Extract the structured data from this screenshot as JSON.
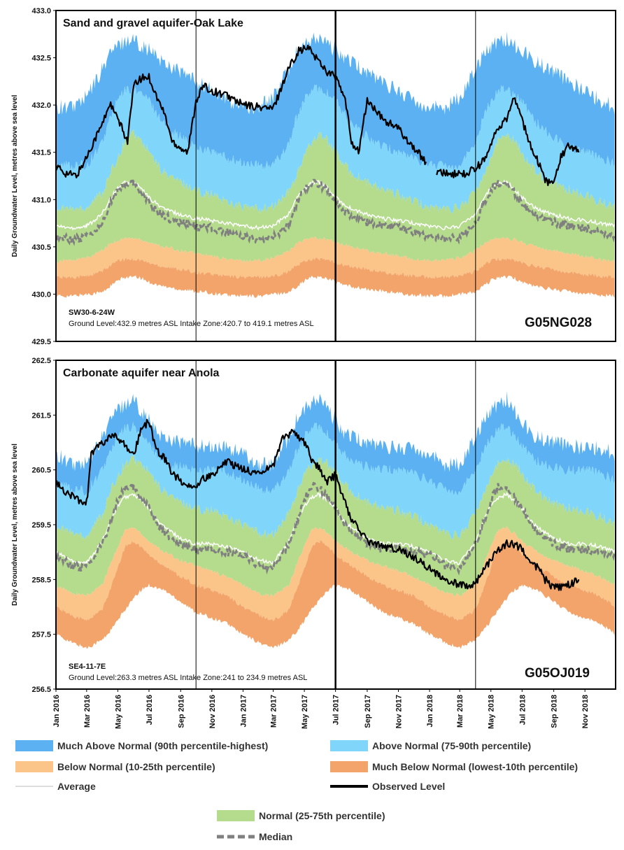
{
  "chart_data": [
    {
      "type": "area",
      "title": "Sand and gravel aquifer-Oak Lake",
      "location": "SW30-6-24W",
      "info": "Ground Level:432.9 metres ASL Intake Zone:420.7 to 419.1 metres ASL",
      "station": "G05NG028",
      "ylabel": "Daily Groundwater Level, metres above sea level",
      "ylim": [
        429.5,
        433.0
      ],
      "yticks": [
        "433.0",
        "432.5",
        "432.0",
        "431.5",
        "431.0",
        "430.5",
        "430.0",
        "429.5"
      ],
      "xlim": [
        "2016-01-01",
        "2018-12-31"
      ],
      "vlines": [
        {
          "date": "2016-10-01",
          "weight": "thin"
        },
        {
          "date": "2017-07-01",
          "weight": "thick"
        },
        {
          "date": "2018-04-01",
          "weight": "thin"
        }
      ],
      "percentile_bands": {
        "x": [
          "01-01",
          "02-01",
          "03-01",
          "04-01",
          "04-15",
          "05-01",
          "05-15",
          "06-01",
          "06-15",
          "07-01",
          "07-15",
          "08-01",
          "09-01",
          "10-01",
          "11-01",
          "12-01",
          "12-31"
        ],
        "min": [
          429.98,
          429.98,
          430.0,
          430.02,
          430.08,
          430.14,
          430.18,
          430.18,
          430.17,
          430.13,
          430.1,
          430.08,
          430.05,
          430.03,
          430.01,
          429.99,
          429.98
        ],
        "p10": [
          430.18,
          430.18,
          430.19,
          430.24,
          430.3,
          430.35,
          430.37,
          430.37,
          430.36,
          430.33,
          430.31,
          430.29,
          430.26,
          430.23,
          430.21,
          430.19,
          430.18
        ],
        "p25": [
          430.35,
          430.36,
          430.38,
          430.46,
          430.53,
          430.57,
          430.59,
          430.59,
          430.58,
          430.55,
          430.52,
          430.5,
          430.46,
          430.43,
          430.4,
          430.37,
          430.35
        ],
        "p75": [
          430.92,
          430.9,
          430.92,
          431.08,
          431.25,
          431.45,
          431.62,
          431.7,
          431.62,
          431.5,
          431.38,
          431.28,
          431.18,
          431.1,
          431.05,
          430.98,
          430.92
        ],
        "p90": [
          431.38,
          431.36,
          431.36,
          431.6,
          431.85,
          432.05,
          432.15,
          432.18,
          432.12,
          432.05,
          431.92,
          431.8,
          431.66,
          431.56,
          431.5,
          431.44,
          431.38
        ],
        "max": [
          431.98,
          431.98,
          432.08,
          432.38,
          432.55,
          432.62,
          432.68,
          432.7,
          432.64,
          432.58,
          432.52,
          432.45,
          432.35,
          432.25,
          432.15,
          432.05,
          431.98
        ],
        "average": [
          430.72,
          430.7,
          430.72,
          430.85,
          431.0,
          431.12,
          431.18,
          431.18,
          431.12,
          431.02,
          430.96,
          430.9,
          430.84,
          430.8,
          430.78,
          430.75,
          430.72
        ],
        "median": [
          430.61,
          430.58,
          430.6,
          430.74,
          430.95,
          431.1,
          431.17,
          431.16,
          431.08,
          430.96,
          430.88,
          430.82,
          430.76,
          430.72,
          430.7,
          430.66,
          430.61
        ]
      },
      "observed_segments": [
        {
          "x": [
            "2016-01-01",
            "2016-01-20",
            "2016-02-10",
            "2016-03-01",
            "2016-03-15",
            "2016-04-01",
            "2016-04-15",
            "2016-05-01",
            "2016-05-20",
            "2016-06-01",
            "2016-06-15",
            "2016-07-01",
            "2016-07-15",
            "2016-08-01",
            "2016-08-15",
            "2016-09-01",
            "2016-09-15",
            "2016-10-01",
            "2016-10-15",
            "2016-11-01",
            "2016-12-01",
            "2017-01-01",
            "2017-02-01",
            "2017-03-01",
            "2017-04-01",
            "2017-04-20",
            "2017-05-10",
            "2017-06-01",
            "2017-06-15",
            "2017-07-01",
            "2017-07-20",
            "2017-08-01",
            "2017-08-15",
            "2017-09-01",
            "2017-10-01",
            "2017-11-01",
            "2017-12-01",
            "2017-12-25"
          ],
          "y": [
            431.35,
            431.28,
            431.25,
            431.45,
            431.62,
            431.8,
            432.02,
            431.85,
            431.62,
            432.2,
            432.28,
            432.3,
            432.1,
            431.9,
            431.62,
            431.55,
            431.5,
            432.05,
            432.2,
            432.15,
            432.1,
            432.0,
            431.98,
            431.96,
            432.4,
            432.58,
            432.6,
            432.45,
            432.35,
            432.3,
            432.05,
            431.62,
            431.5,
            432.05,
            431.85,
            431.75,
            431.55,
            431.4
          ]
        },
        {
          "x": [
            "2018-01-15",
            "2018-02-15",
            "2018-03-15",
            "2018-04-01",
            "2018-04-20",
            "2018-05-10",
            "2018-06-01",
            "2018-06-15",
            "2018-07-01",
            "2018-07-15",
            "2018-08-01",
            "2018-08-15",
            "2018-09-01",
            "2018-09-15",
            "2018-10-01",
            "2018-10-20"
          ],
          "y": [
            431.3,
            431.27,
            431.27,
            431.33,
            431.42,
            431.7,
            431.85,
            432.08,
            431.85,
            431.6,
            431.4,
            431.2,
            431.15,
            431.45,
            431.58,
            431.5
          ]
        }
      ]
    },
    {
      "type": "area",
      "title": "Carbonate aquifer near Anola",
      "location": "SE4-11-7E",
      "info": "Ground Level:263.3 metres ASL Intake Zone:241 to 234.9 metres ASL",
      "station": "G05OJ019",
      "ylabel": "Daily Groundwater Level, metres above sea level",
      "ylim": [
        256.5,
        262.5
      ],
      "yticks": [
        "262.5",
        "261.5",
        "260.5",
        "259.5",
        "258.5",
        "257.5",
        "256.5"
      ],
      "xlim": [
        "2016-01-01",
        "2018-12-31"
      ],
      "vlines": [
        {
          "date": "2016-10-01",
          "weight": "thin"
        },
        {
          "date": "2017-07-01",
          "weight": "thick"
        },
        {
          "date": "2018-04-01",
          "weight": "thin"
        }
      ],
      "percentile_bands": {
        "x": [
          "01-01",
          "02-01",
          "03-01",
          "04-01",
          "04-15",
          "05-01",
          "05-15",
          "06-01",
          "06-15",
          "07-01",
          "07-15",
          "08-01",
          "09-01",
          "10-01",
          "11-01",
          "12-01",
          "12-31"
        ],
        "min": [
          257.5,
          257.35,
          257.25,
          257.4,
          257.55,
          257.75,
          257.95,
          258.15,
          258.3,
          258.4,
          258.35,
          258.3,
          258.1,
          257.9,
          257.8,
          257.7,
          257.5
        ],
        "p10": [
          258.0,
          257.85,
          257.75,
          257.95,
          258.3,
          258.7,
          259.1,
          259.2,
          259.1,
          258.95,
          258.85,
          258.75,
          258.55,
          258.4,
          258.3,
          258.2,
          258.0
        ],
        "p25": [
          258.4,
          258.25,
          258.2,
          258.4,
          258.75,
          259.1,
          259.4,
          259.45,
          259.35,
          259.2,
          259.1,
          259.0,
          258.85,
          258.75,
          258.65,
          258.55,
          258.4
        ],
        "p75": [
          259.5,
          259.35,
          259.3,
          259.7,
          260.05,
          260.4,
          260.6,
          260.7,
          260.6,
          260.45,
          260.25,
          260.1,
          259.9,
          259.8,
          259.75,
          259.65,
          259.5
        ],
        "p90": [
          260.3,
          260.15,
          260.1,
          260.5,
          260.8,
          261.1,
          261.25,
          261.3,
          261.15,
          260.95,
          260.8,
          260.65,
          260.55,
          260.5,
          260.5,
          260.45,
          260.3
        ],
        "max": [
          260.8,
          260.6,
          260.6,
          261.1,
          261.4,
          261.6,
          261.7,
          261.8,
          261.6,
          261.4,
          261.2,
          261.1,
          261.0,
          260.95,
          260.9,
          260.9,
          260.8
        ],
        "average": [
          259.0,
          258.85,
          258.8,
          259.2,
          259.55,
          259.85,
          260.0,
          260.05,
          259.95,
          259.8,
          259.6,
          259.45,
          259.25,
          259.15,
          259.15,
          259.1,
          259.0
        ],
        "median": [
          258.95,
          258.75,
          258.7,
          259.15,
          259.5,
          259.95,
          260.2,
          260.15,
          260.0,
          259.8,
          259.55,
          259.35,
          259.15,
          259.05,
          259.05,
          259.0,
          258.95
        ]
      },
      "observed_segments": [
        {
          "x": [
            "2016-01-01",
            "2016-01-20",
            "2016-02-15",
            "2016-03-01",
            "2016-03-10",
            "2016-04-01",
            "2016-04-20",
            "2016-05-01",
            "2016-05-20",
            "2016-06-01",
            "2016-06-15",
            "2016-07-01",
            "2016-07-15",
            "2016-08-01",
            "2016-08-15",
            "2016-09-01",
            "2016-09-15",
            "2016-10-01",
            "2016-10-15",
            "2016-11-01",
            "2016-12-01",
            "2017-01-01",
            "2017-02-01",
            "2017-03-01",
            "2017-03-20",
            "2017-04-10",
            "2017-05-01",
            "2017-05-15",
            "2017-06-01",
            "2017-06-15",
            "2017-07-01",
            "2017-07-15",
            "2017-08-01",
            "2017-09-01",
            "2017-10-01",
            "2017-11-01",
            "2017-12-01",
            "2018-01-01",
            "2018-02-01",
            "2018-03-01",
            "2018-03-20",
            "2018-04-01",
            "2018-04-20",
            "2018-05-10",
            "2018-06-01",
            "2018-06-15",
            "2018-07-01",
            "2018-07-15",
            "2018-08-01",
            "2018-08-15",
            "2018-09-01",
            "2018-09-15",
            "2018-10-01",
            "2018-10-20"
          ],
          "y": [
            260.25,
            260.1,
            259.95,
            259.9,
            260.8,
            261.0,
            261.1,
            261.1,
            260.9,
            260.8,
            261.2,
            261.4,
            260.85,
            260.7,
            260.45,
            260.3,
            260.2,
            260.2,
            260.35,
            260.4,
            260.65,
            260.5,
            260.45,
            260.55,
            261.1,
            261.2,
            261.0,
            260.7,
            260.5,
            260.3,
            260.4,
            260.0,
            259.6,
            259.2,
            259.1,
            259.05,
            258.9,
            258.7,
            258.5,
            258.4,
            258.4,
            258.45,
            258.7,
            259.0,
            259.15,
            259.15,
            259.05,
            258.9,
            258.7,
            258.5,
            258.35,
            258.35,
            258.4,
            258.5
          ]
        }
      ]
    }
  ],
  "legend": {
    "much_above": {
      "label": "Much Above Normal (90th percentile-highest)",
      "color": "#5BB1F2"
    },
    "above": {
      "label": "Above Normal (75-90th percentile)",
      "color": "#7FD6FA"
    },
    "normal": {
      "label": "Normal (25-75th percentile)",
      "color": "#B4DC8C"
    },
    "below": {
      "label": "Below Normal (10-25th percentile)",
      "color": "#FBC589"
    },
    "much_below": {
      "label": "Much Below Normal (lowest-10th percentile)",
      "color": "#F2A46A"
    },
    "average": {
      "label": "Average",
      "color": "#FFFFFF"
    },
    "observed": {
      "label": "Observed Level",
      "color": "#000000"
    },
    "median": {
      "label": "Median",
      "color": "#808080"
    }
  },
  "x_tick_labels": [
    "Jan 2016",
    "Mar 2016",
    "May 2016",
    "Jul 2016",
    "Sep 2016",
    "Nov 2016",
    "Jan 2017",
    "Mar 2017",
    "May 2017",
    "Jul 2017",
    "Sep 2017",
    "Nov 2017",
    "Jan 2018",
    "Mar 2018",
    "May 2018",
    "Jul 2018",
    "Sep 2018",
    "Nov 2018"
  ]
}
